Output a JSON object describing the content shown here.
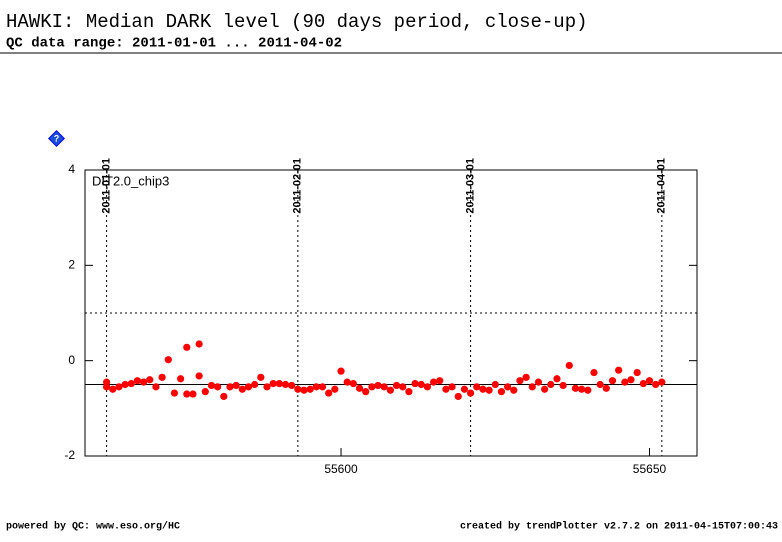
{
  "chart_data": {
    "type": "scatter",
    "title": "HAWKI: Median DARK level (90 days period, close-up)",
    "subtitle": "QC data range: 2011-01-01 ... 2011-04-02",
    "annotation": "DIT2.0_chip3",
    "help_icon": "?",
    "footer_left": "powered by QC: www.eso.org/HC",
    "footer_right": "created by trendPlotter v2.7.2 on 2011-04-15T07:00:43",
    "xlim": [
      55558.5,
      55657.7
    ],
    "ylim": [
      -2,
      4
    ],
    "xticks": [
      55600,
      55650
    ],
    "yticks": [
      4,
      2,
      0,
      -2
    ],
    "x2ticks": [
      {
        "value": 55562,
        "label": "2011-01-01"
      },
      {
        "value": 55593,
        "label": "2011-02-01"
      },
      {
        "value": 55621,
        "label": "2011-03-01"
      },
      {
        "value": 55652,
        "label": "2011-04-01"
      }
    ],
    "mean_line": -0.5,
    "threshold_line": 1,
    "series": [
      {
        "color": "#ff0000",
        "x": [
          55562,
          55562,
          55563,
          55564,
          55565,
          55566,
          55567,
          55568,
          55569,
          55570,
          55571,
          55572,
          55573,
          55574,
          55575,
          55575,
          55576,
          55577,
          55577,
          55578,
          55579,
          55580,
          55581,
          55582,
          55583,
          55584,
          55585,
          55586,
          55587,
          55588,
          55589,
          55590,
          55591,
          55592,
          55593,
          55594,
          55595,
          55596,
          55597,
          55598,
          55599,
          55600,
          55601,
          55602,
          55603,
          55604,
          55605,
          55606,
          55607,
          55608,
          55609,
          55610,
          55611,
          55612,
          55613,
          55614,
          55615,
          55616,
          55617,
          55618,
          55619,
          55620,
          55621,
          55622,
          55623,
          55624,
          55625,
          55626,
          55627,
          55628,
          55629,
          55630,
          55631,
          55632,
          55633,
          55634,
          55635,
          55636,
          55637,
          55638,
          55639,
          55640,
          55641,
          55642,
          55643,
          55644,
          55645,
          55646,
          55647,
          55648,
          55649,
          55650,
          55651,
          55652
        ],
        "values": [
          -0.45,
          -0.55,
          -0.6,
          -0.55,
          -0.5,
          -0.48,
          -0.42,
          -0.45,
          -0.4,
          -0.55,
          -0.35,
          0.02,
          -0.68,
          -0.38,
          0.28,
          -0.7,
          -0.7,
          0.35,
          -0.32,
          -0.65,
          -0.52,
          -0.55,
          -0.75,
          -0.55,
          -0.52,
          -0.6,
          -0.55,
          -0.5,
          -0.35,
          -0.55,
          -0.48,
          -0.48,
          -0.5,
          -0.52,
          -0.6,
          -0.62,
          -0.6,
          -0.55,
          -0.55,
          -0.68,
          -0.6,
          -0.22,
          -0.45,
          -0.48,
          -0.58,
          -0.65,
          -0.55,
          -0.52,
          -0.55,
          -0.62,
          -0.52,
          -0.55,
          -0.65,
          -0.48,
          -0.5,
          -0.55,
          -0.45,
          -0.42,
          -0.6,
          -0.55,
          -0.75,
          -0.6,
          -0.68,
          -0.55,
          -0.6,
          -0.62,
          -0.5,
          -0.65,
          -0.55,
          -0.62,
          -0.42,
          -0.35,
          -0.55,
          -0.45,
          -0.6,
          -0.5,
          -0.38,
          -0.52,
          -0.1,
          -0.58,
          -0.6,
          -0.62,
          -0.25,
          -0.5,
          -0.58,
          -0.42,
          -0.2,
          -0.45,
          -0.4,
          -0.25,
          -0.48,
          -0.42,
          -0.5,
          -0.45
        ]
      }
    ]
  }
}
